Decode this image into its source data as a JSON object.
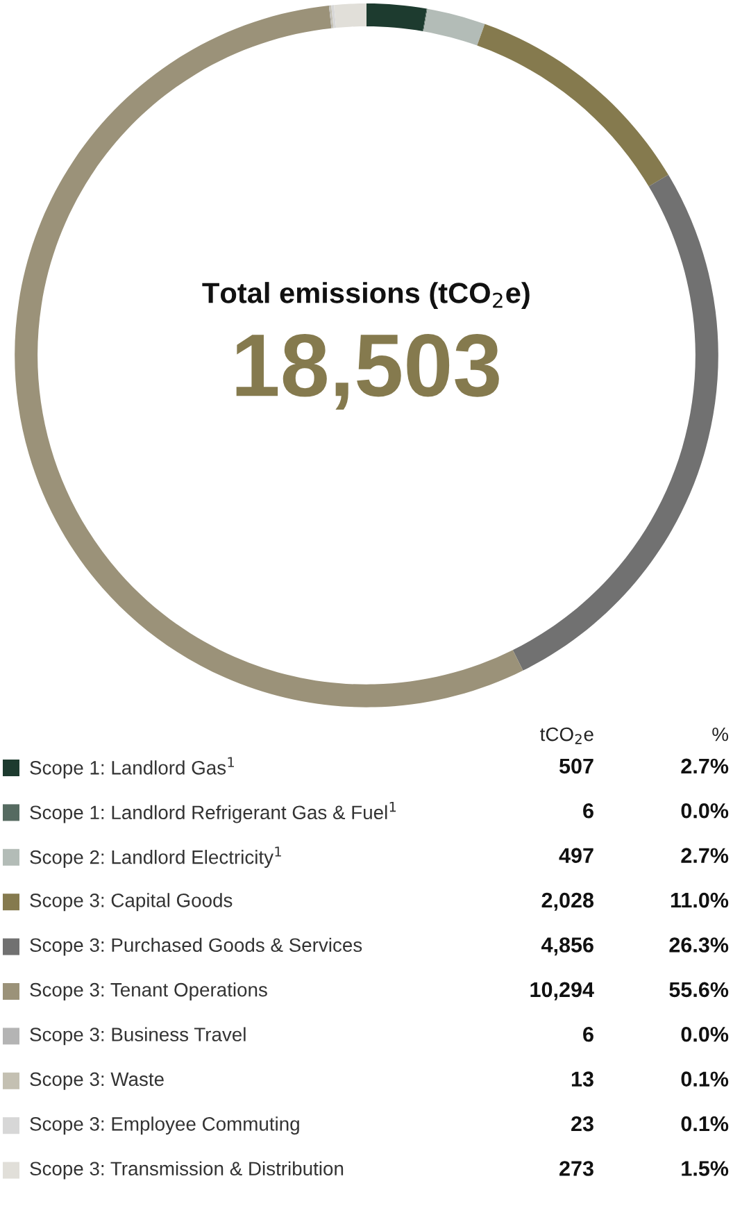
{
  "chart_data": {
    "type": "donut",
    "title": "Total emissions (tCO$_{2}$e)",
    "subtitle": "18,503",
    "categories": [
      "Scope 1: Landlord Gas$^{1}$",
      "Scope 1: Landlord Refrigerant Gas & Fuel$^{1}$",
      "Scope 2: Landlord Electricity$^{1}$",
      "Scope 3: Capital Goods",
      "Scope 3: Purchased Goods & Services",
      "Scope 3: Tenant Operations",
      "Scope 3: Business Travel",
      "Scope 3: Waste",
      "Scope 3: Employee Commuting",
      "Scope 3: Transmission & Distribution"
    ],
    "values": [
      507,
      6,
      497,
      2028,
      4856,
      10294,
      6,
      13,
      23,
      273
    ],
    "value_labels": [
      "507",
      "6",
      "497",
      "2,028",
      "4,856",
      "10,294",
      "6",
      "13",
      "23",
      "273"
    ],
    "colors": [
      "#1d3b2f",
      "#566b61",
      "#b3bcb7",
      "#857a4e",
      "#717171",
      "#9b9279",
      "#b4b4b4",
      "#c4c0b2",
      "#d7d7d7",
      "#e1dfd9"
    ],
    "annotations": [
      "tCO$_{2}$e",
      "%",
      "2.7%",
      "0.0%",
      "2.7%",
      "11.0%",
      "26.3%",
      "55.6%",
      "0.0%",
      "0.1%",
      "0.1%",
      "1.5%"
    ],
    "legend": "bottom"
  }
}
